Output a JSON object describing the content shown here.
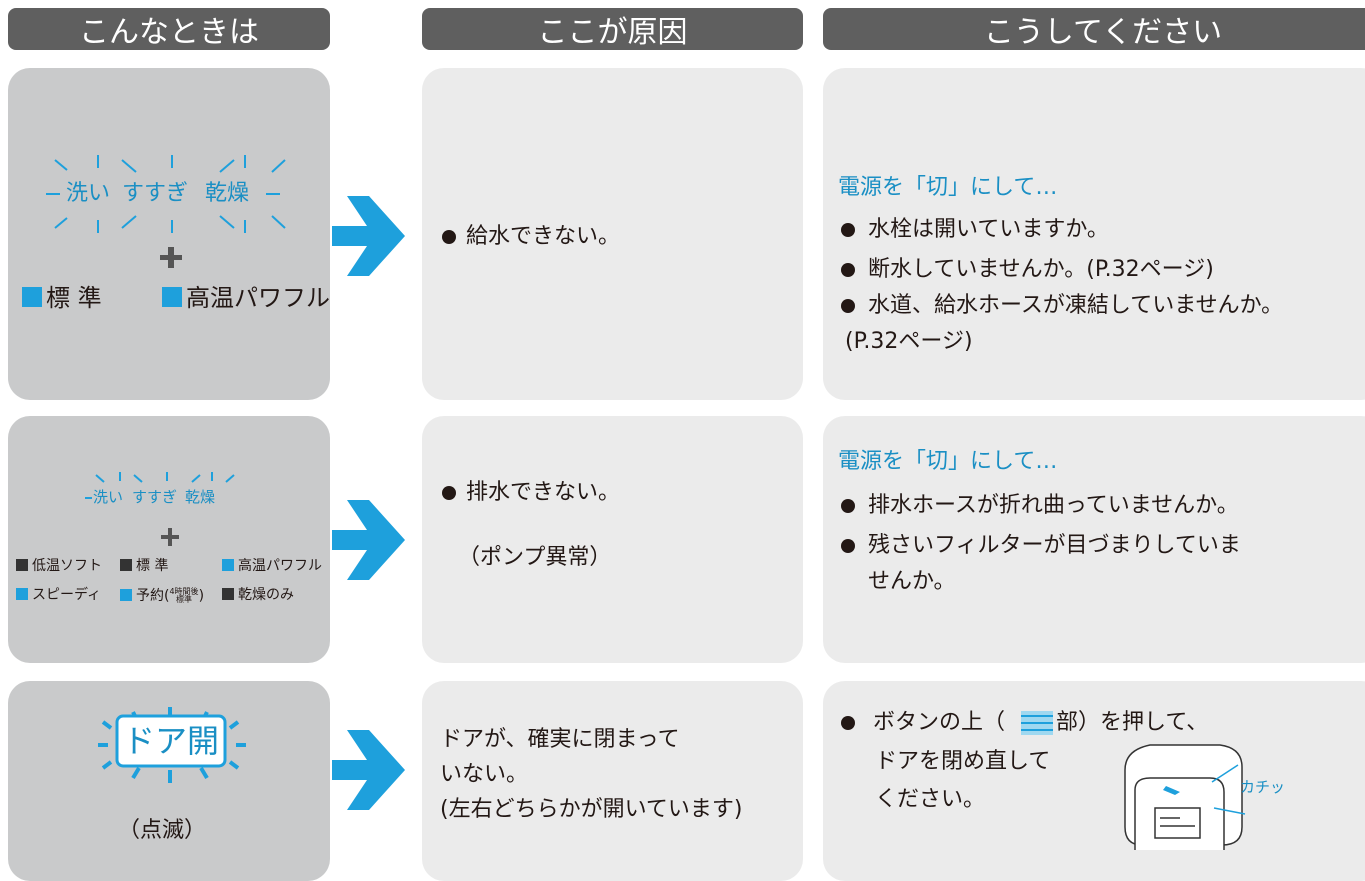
{
  "headers": [
    "こんなときは",
    "ここが原因",
    "こうしてください"
  ],
  "rows": [
    {
      "indicator": {
        "lamps": [
          "洗い",
          "すすぎ",
          "乾燥"
        ],
        "modes": [
          "標 準",
          "高温パワフル"
        ]
      },
      "cause": [
        "給水できない。"
      ],
      "remedy": {
        "lead": "電源を「切」にして…",
        "items": [
          "水栓は開いていますか。",
          "断水していませんか。(P.32ページ)",
          "水道、給水ホースが凍結していませんか。"
        ],
        "continuation": "(P.32ページ)"
      }
    },
    {
      "indicator": {
        "lamps": [
          "洗い",
          "すすぎ",
          "乾燥"
        ],
        "modes": [
          "低温ソフト",
          "標 準",
          "高温パワフル",
          "スピーディ",
          "予約",
          "4時間後",
          "標準",
          "乾燥のみ"
        ]
      },
      "cause": [
        "排水できない。",
        "（ポンプ異常）"
      ],
      "remedy": {
        "lead": "電源を「切」にして…",
        "items": [
          "排水ホースが折れ曲っていませんか。",
          "残さいフィルターが目づまりしていま"
        ],
        "continuation": "せんか。"
      }
    },
    {
      "indicator": {
        "label": "ドア開",
        "note": "（点滅）"
      },
      "cause": [
        "ドアが、確実に閉まって",
        "いない。",
        "(左右どちらかが開いています)"
      ],
      "remedy": {
        "lines": [
          "ボタンの上（",
          "部）を押して、",
          "ドアを閉め直して",
          "ください。"
        ],
        "sound": "カチッ"
      }
    }
  ]
}
